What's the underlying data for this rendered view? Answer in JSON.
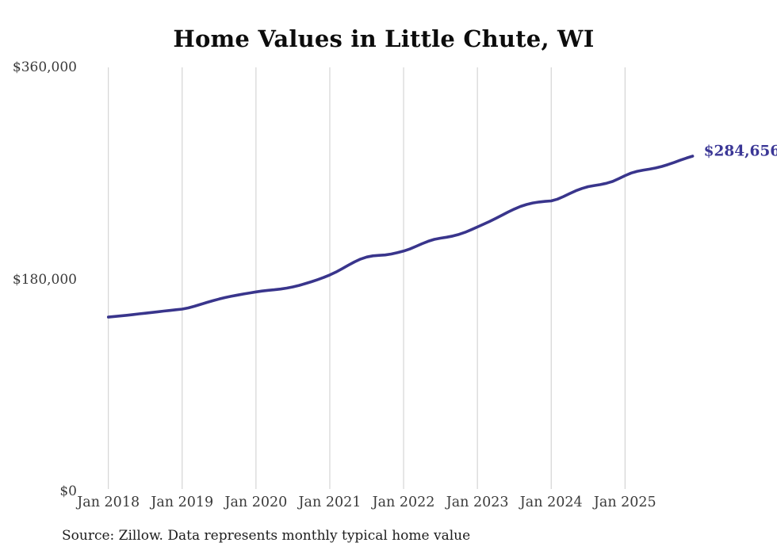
{
  "title": "Home Values in Little Chute, WI",
  "end_label": "$284,656",
  "source_note": "Source: Zillow. Data represents monthly typical home value",
  "colors": {
    "line": "#39358c",
    "end_label_text": "#3b3796",
    "gridline": "#cccccc",
    "title_text": "#0c0c0c",
    "axis_text": "#3a3a3a",
    "source_text": "#1c1c1c",
    "background": "#ffffff"
  },
  "chart_data": {
    "type": "line",
    "title": "Home Values in Little Chute, WI",
    "xlabel": "",
    "ylabel": "",
    "interval": "monthly",
    "x_start": "Jan 2018",
    "x_end": "Dec 2025",
    "ylim": [
      0,
      360000
    ],
    "y_ticks": [
      0,
      180000,
      360000
    ],
    "y_tick_labels": [
      "$0",
      "$180,000",
      "$360,000"
    ],
    "x_tick_labels": [
      "Jan 2018",
      "Jan 2019",
      "Jan 2020",
      "Jan 2021",
      "Jan 2022",
      "Jan 2023",
      "Jan 2024",
      "Jan 2025"
    ],
    "x_tick_month_index": [
      0,
      12,
      24,
      36,
      48,
      60,
      72,
      84
    ],
    "grid": "vertical-only",
    "legend_position": "none",
    "end_value": 284656,
    "series": [
      {
        "name": "Monthly typical home value",
        "values": [
          148000,
          148500,
          149000,
          149500,
          150100,
          150700,
          151300,
          151900,
          152500,
          153100,
          153600,
          154200,
          154800,
          155800,
          157200,
          158800,
          160400,
          161900,
          163300,
          164600,
          165700,
          166700,
          167600,
          168500,
          169400,
          170100,
          170700,
          171200,
          171800,
          172600,
          173600,
          174900,
          176400,
          178000,
          179700,
          181600,
          183800,
          186200,
          189000,
          192000,
          194800,
          197200,
          199000,
          200000,
          200400,
          200700,
          201500,
          202700,
          204000,
          205800,
          208000,
          210300,
          212400,
          214000,
          215000,
          215800,
          216800,
          218200,
          220000,
          222200,
          224500,
          226800,
          229200,
          231800,
          234500,
          237200,
          239700,
          241900,
          243600,
          244900,
          245700,
          246200,
          246600,
          248100,
          250300,
          252800,
          255200,
          257200,
          258700,
          259700,
          260500,
          261600,
          263200,
          265500,
          268100,
          270300,
          271800,
          272800,
          273600,
          274600,
          275900,
          277500,
          279300,
          281200,
          283000,
          284656
        ]
      }
    ]
  }
}
